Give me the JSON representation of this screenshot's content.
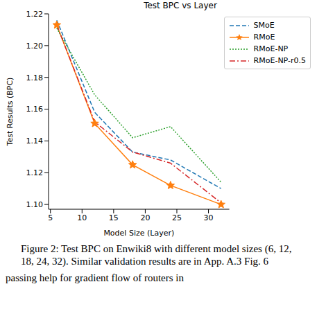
{
  "chart_data": {
    "type": "line",
    "title": "Test BPC vs Layer",
    "x_label": "Model Size (Layer)",
    "y_label": "Test Results (BPC)",
    "x": [
      6,
      12,
      18,
      24,
      32
    ],
    "xlim": [
      4.7,
      33.3
    ],
    "xticks": [
      5,
      10,
      15,
      20,
      25,
      30
    ],
    "ylim": [
      1.097,
      1.22
    ],
    "yticks": [
      {
        "value": 1.1,
        "label": "1.10"
      },
      1.12,
      1.14,
      1.16,
      1.18,
      {
        "value": 1.2,
        "label": "1.20"
      },
      1.22
    ],
    "legend": "upper right",
    "grid": false,
    "series": [
      {
        "name": "SMoE",
        "color": "#1f77b4",
        "line_style": "dashed",
        "marker": "none",
        "values": [
          1.216,
          1.158,
          1.133,
          1.128,
          1.11
        ]
      },
      {
        "name": "RMoE",
        "color": "#ff7f0e",
        "line_style": "solid",
        "marker": "star",
        "values": [
          1.213,
          1.151,
          1.125,
          1.112,
          1.1
        ]
      },
      {
        "name": "RMoE-NP",
        "color": "#2ca02c",
        "line_style": "dotted",
        "marker": "none",
        "values": [
          1.211,
          1.169,
          1.142,
          1.149,
          1.114
        ]
      },
      {
        "name": "RMoE-NP-r0.5",
        "color": "#d62728",
        "line_style": "dashdot",
        "marker": "none",
        "values": [
          1.213,
          1.152,
          1.133,
          1.126,
          1.101
        ]
      }
    ],
    "caption": "Figure 2: Test BPC on Enwiki8 with different model sizes (6, 12, 18, 24, 32). Similar validation results are in App. A.3 Fig. 6",
    "annotations": [
      "passing help for gradient flow of routers in"
    ]
  }
}
